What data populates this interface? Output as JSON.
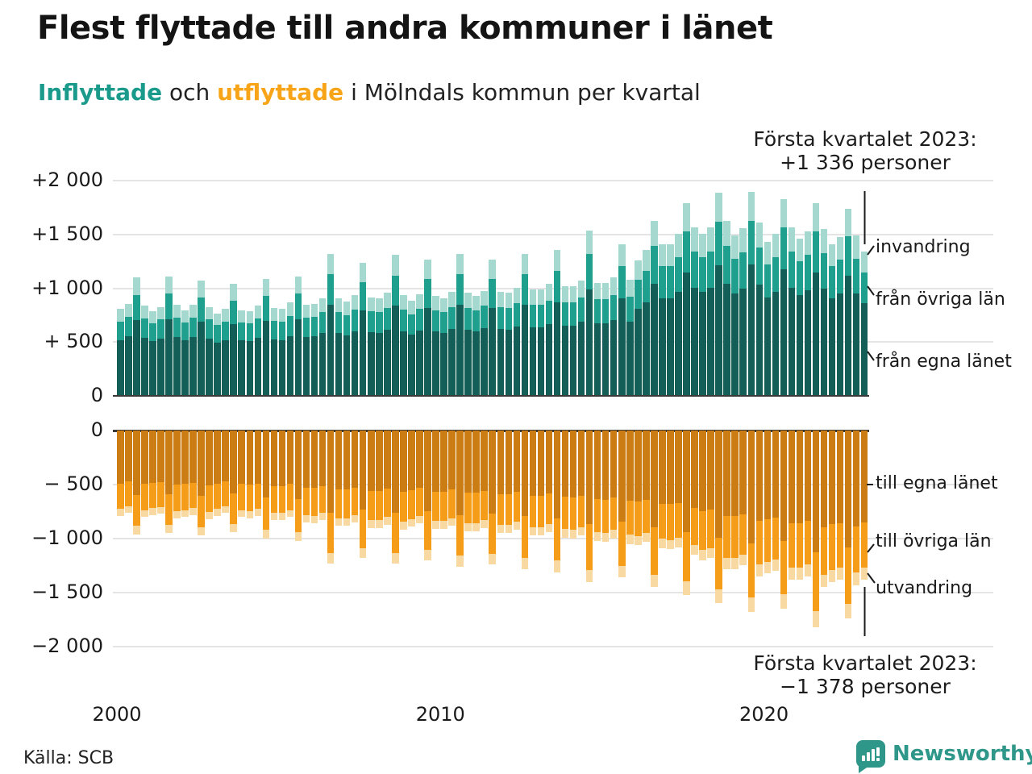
{
  "header": {
    "title": "Flest flyttade till andra kommuner i länet",
    "subtitle_part1": "Inflyttade",
    "subtitle_part2": " och ",
    "subtitle_part3": "utflyttade",
    "subtitle_part4": " i Mölndals kommun per kvartal"
  },
  "annotations": {
    "top_line1": "Första kvartalet 2023:",
    "top_line2": "+1 336 personer",
    "bottom_line1": "Första kvartalet 2023:",
    "bottom_line2": "−1 378 personer"
  },
  "axes": {
    "y_ticks_top": [
      {
        "label": "+2 000",
        "value": 2000
      },
      {
        "label": "+1 500",
        "value": 1500
      },
      {
        "label": "+1 000",
        "value": 1000
      },
      {
        "label": "+ 500",
        "value": 500
      },
      {
        "label": "0",
        "value": 0
      }
    ],
    "y_ticks_bottom": [
      {
        "label": "0",
        "value": 0
      },
      {
        "label": "− 500",
        "value": -500
      },
      {
        "label": "−1 000",
        "value": -1000
      },
      {
        "label": "−1 500",
        "value": -1500
      },
      {
        "label": "−2 000",
        "value": -2000
      }
    ],
    "x_ticks": [
      {
        "label": "2000",
        "quarter_index": 0
      },
      {
        "label": "2010",
        "quarter_index": 40
      },
      {
        "label": "2020",
        "quarter_index": 80
      }
    ]
  },
  "right_labels_top": [
    "invandring",
    "från övriga län",
    "från egna länet"
  ],
  "right_labels_bottom": [
    "till egna länet",
    "till övriga län",
    "utvandring"
  ],
  "footer": {
    "source": "Källa: SCB",
    "brand": "Newsworthy"
  },
  "colors": {
    "in_dark": "#135e57",
    "in_mid": "#1fa08e",
    "in_light": "#a5d9cf",
    "out_dark": "#cb7c13",
    "out_mid": "#f59d18",
    "out_light": "#f9d9a2",
    "subtitle_in": "#1a9a8b",
    "subtitle_ut": "#f7a418",
    "brand_teal": "#2f978a"
  },
  "chart_data": {
    "type": "bar",
    "subtype": "diverging-stacked-quarterly",
    "title": "Inflyttade och utflyttade i Mölndals kommun per kvartal",
    "period": "2000 Q1 to 2023 Q1, one bar per quarter (93 bars)",
    "highlight_top": "Första kvartalet 2023: +1 336 personer",
    "highlight_bottom": "Första kvartalet 2023: −1 378 personer",
    "ylim_top": [
      0,
      2000
    ],
    "ylim_bottom": [
      -2000,
      0
    ],
    "x_tick_labels": [
      "2000",
      "2010",
      "2020"
    ],
    "grid": true,
    "series": [
      {
        "name": "från egna länet",
        "direction": "in",
        "color": "#135e57",
        "values": [
          512,
          544,
          698,
          531,
          499,
          525,
          704,
          538,
          506,
          538,
          678,
          525,
          486,
          512,
          659,
          506,
          499,
          531,
          691,
          518,
          512,
          550,
          704,
          538,
          544,
          576,
          838,
          576,
          557,
          595,
          787,
          582,
          576,
          608,
          832,
          595,
          563,
          602,
          806,
          589,
          576,
          614,
          838,
          608,
          589,
          621,
          806,
          614,
          608,
          640,
          838,
          627,
          627,
          659,
          864,
          646,
          646,
          678,
          979,
          666,
          666,
          698,
          896,
          685,
          800,
          864,
          1037,
          896,
          896,
          960,
          1139,
          998,
          960,
          998,
          1203,
          1037,
          947,
          992,
          1210,
          1024,
          909,
          960,
          1165,
          998,
          928,
          973,
          1139,
          986,
          896,
          941,
          1107,
          947,
          855
        ]
      },
      {
        "name": "från övriga län",
        "direction": "in",
        "color": "#1fa08e",
        "values": [
          172,
          183,
          234,
          178,
          168,
          176,
          237,
          181,
          170,
          181,
          228,
          176,
          163,
          172,
          221,
          170,
          168,
          178,
          232,
          174,
          172,
          185,
          237,
          181,
          183,
          194,
          282,
          194,
          187,
          200,
          264,
          196,
          194,
          204,
          280,
          200,
          189,
          202,
          271,
          198,
          194,
          206,
          282,
          204,
          198,
          209,
          271,
          206,
          204,
          215,
          282,
          211,
          211,
          221,
          290,
          217,
          217,
          228,
          329,
          224,
          224,
          234,
          301,
          230,
          269,
          290,
          348,
          301,
          301,
          323,
          383,
          335,
          323,
          335,
          404,
          348,
          318,
          333,
          406,
          344,
          305,
          323,
          391,
          335,
          312,
          327,
          383,
          331,
          301,
          316,
          372,
          318,
          287
        ]
      },
      {
        "name": "invandring",
        "direction": "in",
        "color": "#a5d9cf",
        "values": [
          116,
          123,
          158,
          121,
          113,
          119,
          159,
          121,
          114,
          121,
          154,
          119,
          111,
          116,
          150,
          114,
          113,
          121,
          157,
          118,
          116,
          125,
          159,
          121,
          123,
          130,
          190,
          130,
          126,
          135,
          179,
          132,
          130,
          138,
          188,
          135,
          128,
          136,
          183,
          133,
          130,
          140,
          190,
          138,
          133,
          140,
          183,
          140,
          138,
          145,
          190,
          142,
          142,
          150,
          196,
          147,
          147,
          154,
          222,
          150,
          150,
          158,
          203,
          155,
          181,
          196,
          235,
          203,
          203,
          217,
          258,
          227,
          217,
          227,
          273,
          235,
          215,
          225,
          274,
          232,
          206,
          217,
          264,
          227,
          210,
          220,
          258,
          223,
          203,
          213,
          251,
          215,
          194
        ]
      },
      {
        "name": "till egna länet",
        "direction": "out",
        "color": "#cb7c13",
        "values": [
          490,
          471,
          595,
          496,
          484,
          477,
          589,
          502,
          496,
          484,
          601,
          508,
          490,
          471,
          583,
          496,
          502,
          490,
          620,
          515,
          515,
          496,
          632,
          527,
          533,
          515,
          763,
          546,
          546,
          527,
          732,
          558,
          558,
          539,
          763,
          570,
          552,
          533,
          744,
          564,
          564,
          546,
          781,
          577,
          577,
          558,
          769,
          589,
          589,
          570,
          794,
          601,
          601,
          583,
          812,
          614,
          620,
          601,
          868,
          632,
          639,
          620,
          843,
          651,
          657,
          639,
          899,
          676,
          682,
          670,
          942,
          713,
          744,
          732,
          992,
          794,
          794,
          775,
          1042,
          837,
          818,
          806,
          1023,
          856,
          856,
          837,
          1128,
          899,
          868,
          856,
          1079,
          887,
          854
        ]
      },
      {
        "name": "till övriga län",
        "direction": "out",
        "color": "#f59d18",
        "values": [
          237,
          228,
          288,
          240,
          234,
          231,
          285,
          243,
          240,
          234,
          291,
          246,
          237,
          228,
          282,
          240,
          243,
          237,
          300,
          249,
          249,
          240,
          306,
          255,
          258,
          249,
          369,
          264,
          264,
          255,
          354,
          270,
          270,
          261,
          369,
          276,
          267,
          258,
          360,
          273,
          273,
          264,
          378,
          279,
          279,
          270,
          372,
          285,
          285,
          276,
          384,
          291,
          291,
          282,
          393,
          297,
          300,
          291,
          420,
          306,
          309,
          300,
          408,
          315,
          318,
          309,
          435,
          327,
          330,
          324,
          456,
          345,
          360,
          354,
          480,
          384,
          384,
          375,
          504,
          405,
          396,
          390,
          495,
          414,
          414,
          405,
          546,
          435,
          420,
          414,
          522,
          429,
          413
        ]
      },
      {
        "name": "utvandring",
        "direction": "out",
        "color": "#f9d9a2",
        "values": [
          63,
          61,
          77,
          64,
          62,
          62,
          76,
          65,
          64,
          62,
          78,
          66,
          63,
          61,
          75,
          64,
          65,
          63,
          80,
          66,
          66,
          64,
          82,
          68,
          69,
          66,
          98,
          70,
          70,
          68,
          94,
          72,
          72,
          70,
          98,
          74,
          71,
          69,
          96,
          73,
          73,
          70,
          101,
          74,
          74,
          72,
          99,
          76,
          76,
          74,
          102,
          78,
          78,
          75,
          105,
          79,
          80,
          78,
          112,
          82,
          82,
          80,
          109,
          84,
          85,
          82,
          116,
          87,
          88,
          86,
          122,
          92,
          96,
          94,
          128,
          102,
          102,
          100,
          134,
          108,
          106,
          104,
          132,
          110,
          110,
          108,
          146,
          116,
          112,
          110,
          139,
          114,
          111
        ]
      }
    ]
  }
}
